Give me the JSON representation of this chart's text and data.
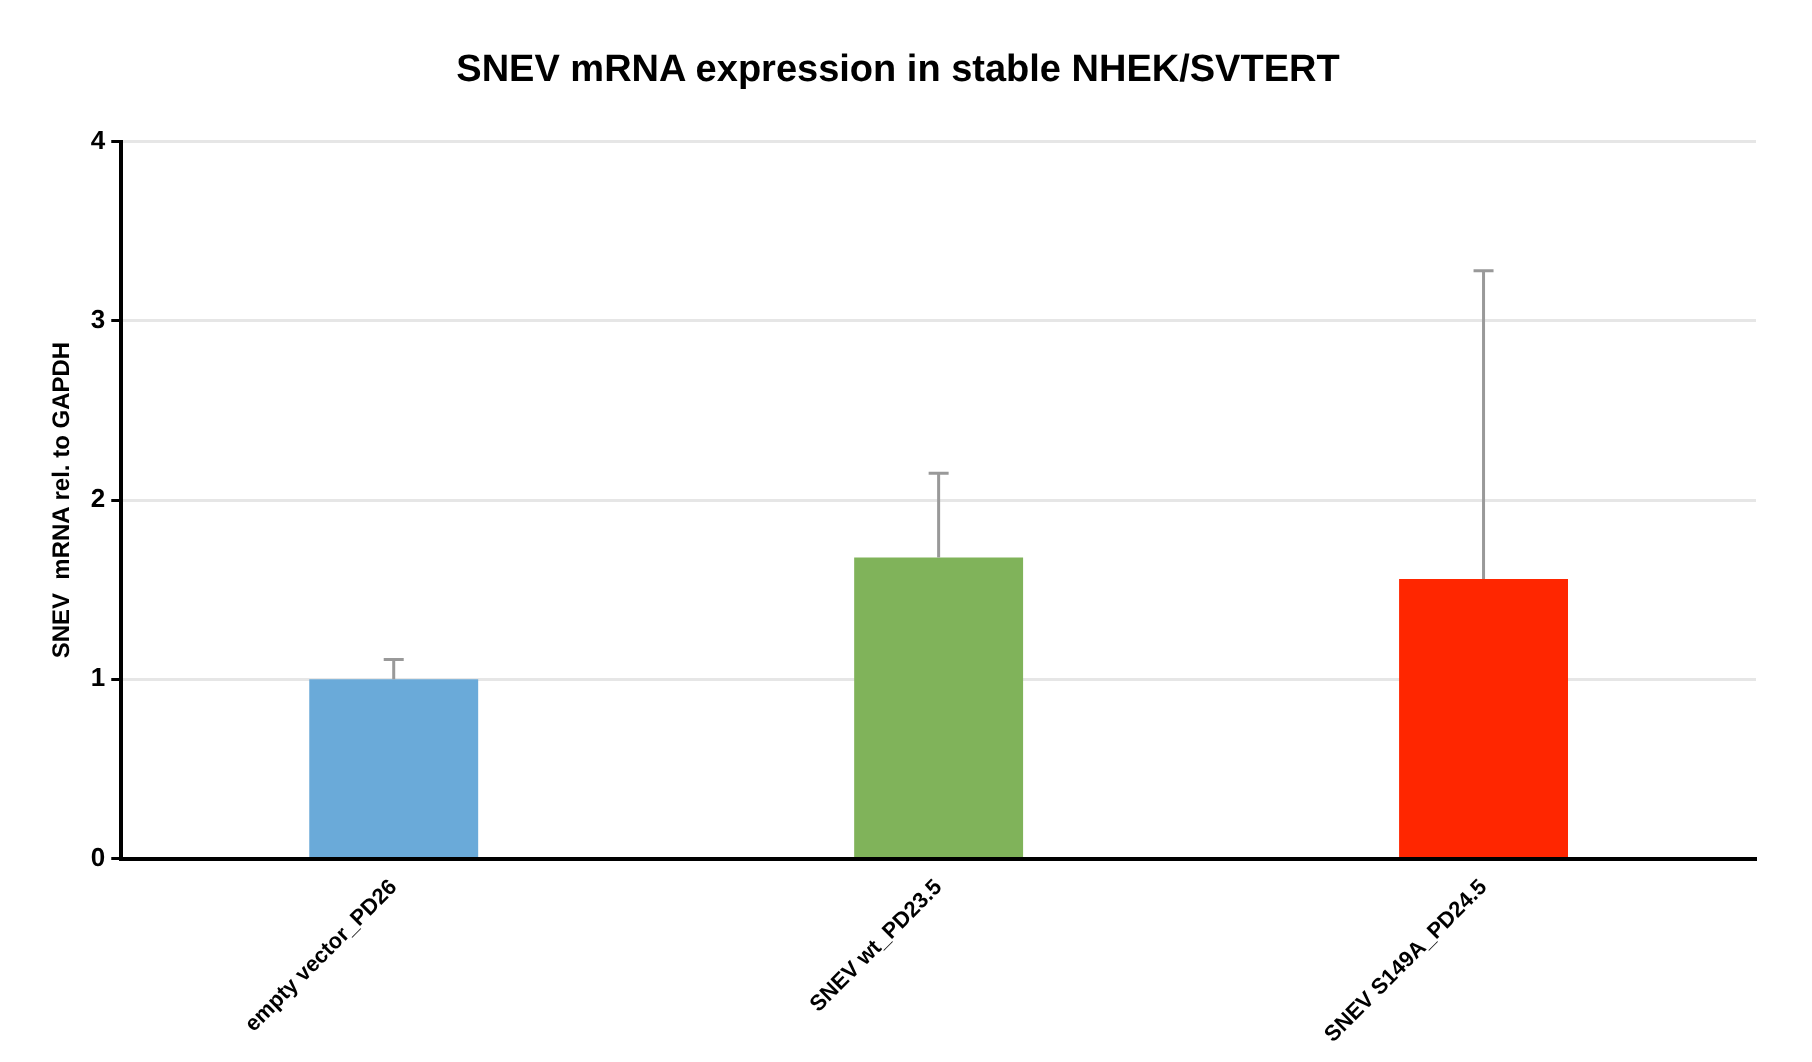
{
  "chart_data": {
    "type": "bar",
    "title": "SNEV mRNA expression in stable NHEK/SVTERT",
    "ylabel": "SNEV  mRNA rel. to GAPDH",
    "categories": [
      "empty vector_PD26",
      "SNEV wt_PD23.5",
      "SNEV S149A_PD24.5"
    ],
    "values": [
      1.0,
      1.68,
      1.56
    ],
    "colors": [
      "#6aaad9",
      "#80b35a",
      "#ff2600"
    ],
    "errors": [
      [
        1.0,
        1.11
      ],
      [
        1.68,
        2.15
      ],
      [
        1.56,
        3.28
      ]
    ],
    "ylim": [
      0,
      4
    ],
    "yticks": [
      0,
      1,
      2,
      3,
      4
    ],
    "grid": "y"
  }
}
